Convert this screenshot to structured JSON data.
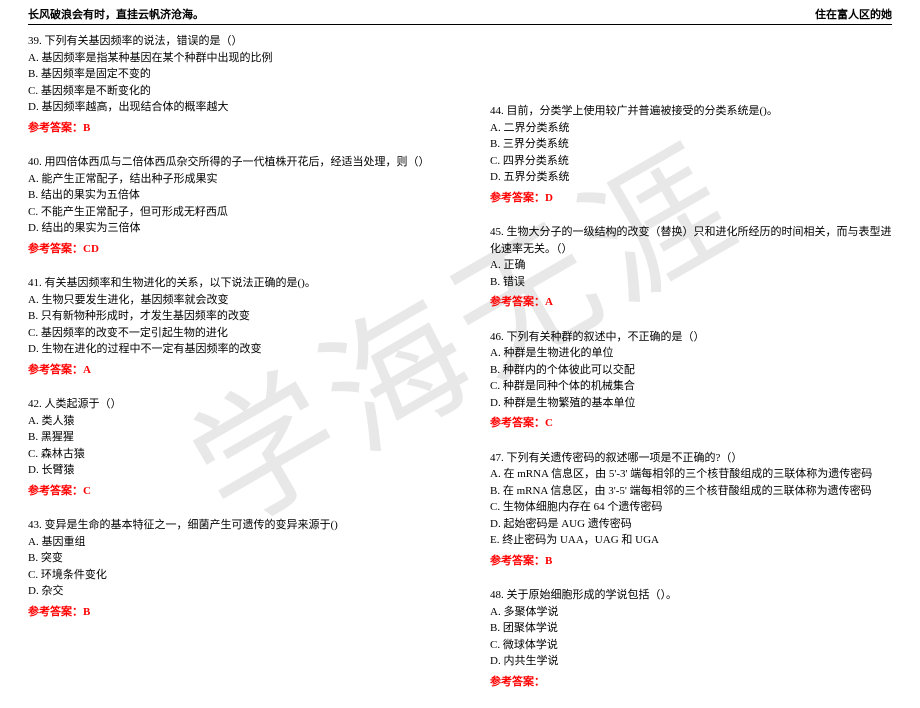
{
  "header": {
    "left": "长风破浪会有时，直挂云帆济沧海。",
    "right": "住在富人区的她"
  },
  "watermark": "学海无涯",
  "answer_label": "参考答案：",
  "left_questions": [
    {
      "num": "39.",
      "stem": "下列有关基因频率的说法，错误的是（）",
      "opts": [
        "A. 基因频率是指某种基因在某个种群中出现的比例",
        "B. 基因频率是固定不变的",
        "C. 基因频率是不断变化的",
        "D. 基因频率越高，出现结合体的概率越大"
      ],
      "ans": "B"
    },
    {
      "num": "40.",
      "stem": "用四倍体西瓜与二倍体西瓜杂交所得的子一代植株开花后，经适当处理，则（）",
      "opts": [
        "A. 能产生正常配子，结出种子形成果实",
        "B. 结出的果实为五倍体",
        "C. 不能产生正常配子，但可形成无籽西瓜",
        "D. 结出的果实为三倍体"
      ],
      "ans": "CD"
    },
    {
      "num": "41.",
      "stem": "有关基因频率和生物进化的关系，以下说法正确的是()。",
      "opts": [
        "A. 生物只要发生进化，基因频率就会改变",
        "B. 只有新物种形成时，才发生基因频率的改变",
        "C. 基因频率的改变不一定引起生物的进化",
        "D. 生物在进化的过程中不一定有基因频率的改变"
      ],
      "ans": "A"
    },
    {
      "num": "42.",
      "stem": "人类起源于（）",
      "opts": [
        "A. 类人猿",
        "B. 黑猩猩",
        "C. 森林古猿",
        "D. 长臂猿"
      ],
      "ans": "C"
    },
    {
      "num": "43.",
      "stem": "变异是生命的基本特征之一，细菌产生可遗传的变异来源于()",
      "opts": [
        "A. 基因重组",
        "B. 突变",
        "C. 环境条件变化",
        "D. 杂交"
      ],
      "ans": "B"
    }
  ],
  "right_questions": [
    {
      "num": "44.",
      "stem": "目前，分类学上使用较广并普遍被接受的分类系统是()。",
      "opts": [
        "A. 二界分类系统",
        "B. 三界分类系统",
        "C. 四界分类系统",
        "D. 五界分类系统"
      ],
      "ans": "D"
    },
    {
      "num": "45.",
      "stem": "生物大分子的一级结构的改变（替换）只和进化所经历的时间相关，而与表型进化速率无关。（）",
      "opts": [
        "A. 正确",
        "B. 错误"
      ],
      "ans": "A"
    },
    {
      "num": "46.",
      "stem": "下列有关种群的叙述中，不正确的是（）",
      "opts": [
        "A. 种群是生物进化的单位",
        "B. 种群内的个体彼此可以交配",
        "C. 种群是同种个体的机械集合",
        "D. 种群是生物繁殖的基本单位"
      ],
      "ans": "C"
    },
    {
      "num": "47.",
      "stem": "下列有关遗传密码的叙述哪一项是不正确的?（）",
      "opts": [
        "A. 在 mRNA 信息区，由 5'-3' 端每相邻的三个核苷酸组成的三联体称为遗传密码",
        "B. 在 mRNA 信息区，由 3'-5' 端每相邻的三个核苷酸组成的三联体称为遗传密码",
        "C. 生物体细胞内存在 64 个遗传密码",
        "D. 起始密码是 AUG 遗传密码",
        "E. 终止密码为 UAA，UAG 和 UGA"
      ],
      "ans": "B"
    },
    {
      "num": "48.",
      "stem": "关于原始细胞形成的学说包括（）。",
      "opts": [
        "A. 多聚体学说",
        "B. 团聚体学说",
        "C. 微球体学说",
        "D. 内共生学说"
      ],
      "ans": ""
    }
  ]
}
